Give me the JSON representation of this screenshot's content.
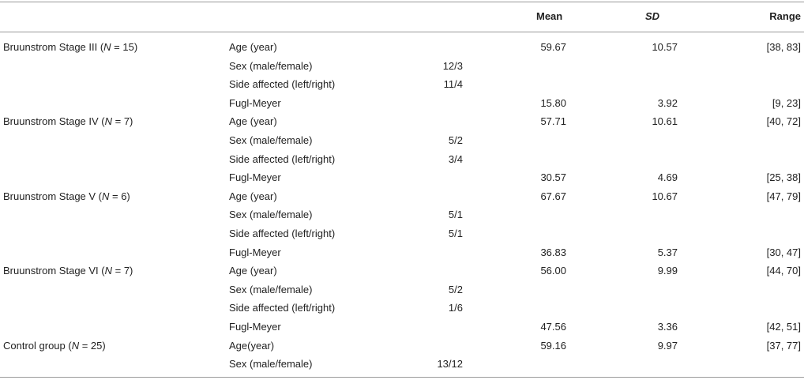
{
  "header": {
    "mean": "Mean",
    "sd": "SD",
    "range": "Range"
  },
  "rows": [
    {
      "group": "Bruunstrom Stage III (N = 15)",
      "item": "Age (year)",
      "value": "",
      "mean": "59.67",
      "sd": "10.57",
      "range": "[38, 83]"
    },
    {
      "group": "",
      "item": "Sex (male/female)",
      "value": "12/3",
      "mean": "",
      "sd": "",
      "range": ""
    },
    {
      "group": "",
      "item": "Side affected (left/right)",
      "value": "11/4",
      "mean": "",
      "sd": "",
      "range": ""
    },
    {
      "group": "",
      "item": "Fugl-Meyer",
      "value": "",
      "mean": "15.80",
      "sd": "3.92",
      "range": "[9, 23]"
    },
    {
      "group": "Bruunstrom Stage IV (N = 7)",
      "item": "Age (year)",
      "value": "",
      "mean": "57.71",
      "sd": "10.61",
      "range": "[40, 72]"
    },
    {
      "group": "",
      "item": "Sex (male/female)",
      "value": "5/2",
      "mean": "",
      "sd": "",
      "range": ""
    },
    {
      "group": "",
      "item": "Side affected (left/right)",
      "value": "3/4",
      "mean": "",
      "sd": "",
      "range": ""
    },
    {
      "group": "",
      "item": "Fugl-Meyer",
      "value": "",
      "mean": "30.57",
      "sd": "4.69",
      "range": "[25, 38]"
    },
    {
      "group": "Bruunstrom Stage V (N = 6)",
      "item": "Age (year)",
      "value": "",
      "mean": "67.67",
      "sd": "10.67",
      "range": "[47, 79]"
    },
    {
      "group": "",
      "item": "Sex (male/female)",
      "value": "5/1",
      "mean": "",
      "sd": "",
      "range": ""
    },
    {
      "group": "",
      "item": "Side affected (left/right)",
      "value": "5/1",
      "mean": "",
      "sd": "",
      "range": ""
    },
    {
      "group": "",
      "item": "Fugl-Meyer",
      "value": "",
      "mean": "36.83",
      "sd": "5.37",
      "range": "[30, 47]"
    },
    {
      "group": "Bruunstrom Stage VI (N = 7)",
      "item": "Age (year)",
      "value": "",
      "mean": "56.00",
      "sd": "9.99",
      "range": "[44, 70]"
    },
    {
      "group": "",
      "item": "Sex (male/female)",
      "value": "5/2",
      "mean": "",
      "sd": "",
      "range": ""
    },
    {
      "group": "",
      "item": "Side affected (left/right)",
      "value": "1/6",
      "mean": "",
      "sd": "",
      "range": ""
    },
    {
      "group": "",
      "item": "Fugl-Meyer",
      "value": "",
      "mean": "47.56",
      "sd": "3.36",
      "range": "[42, 51]"
    },
    {
      "group": "Control group (N = 25)",
      "item": "Age(year)",
      "value": "",
      "mean": "59.16",
      "sd": "9.97",
      "range": "[37, 77]"
    },
    {
      "group": "",
      "item": "Sex (male/female)",
      "value": "13/12",
      "mean": "",
      "sd": "",
      "range": ""
    }
  ]
}
